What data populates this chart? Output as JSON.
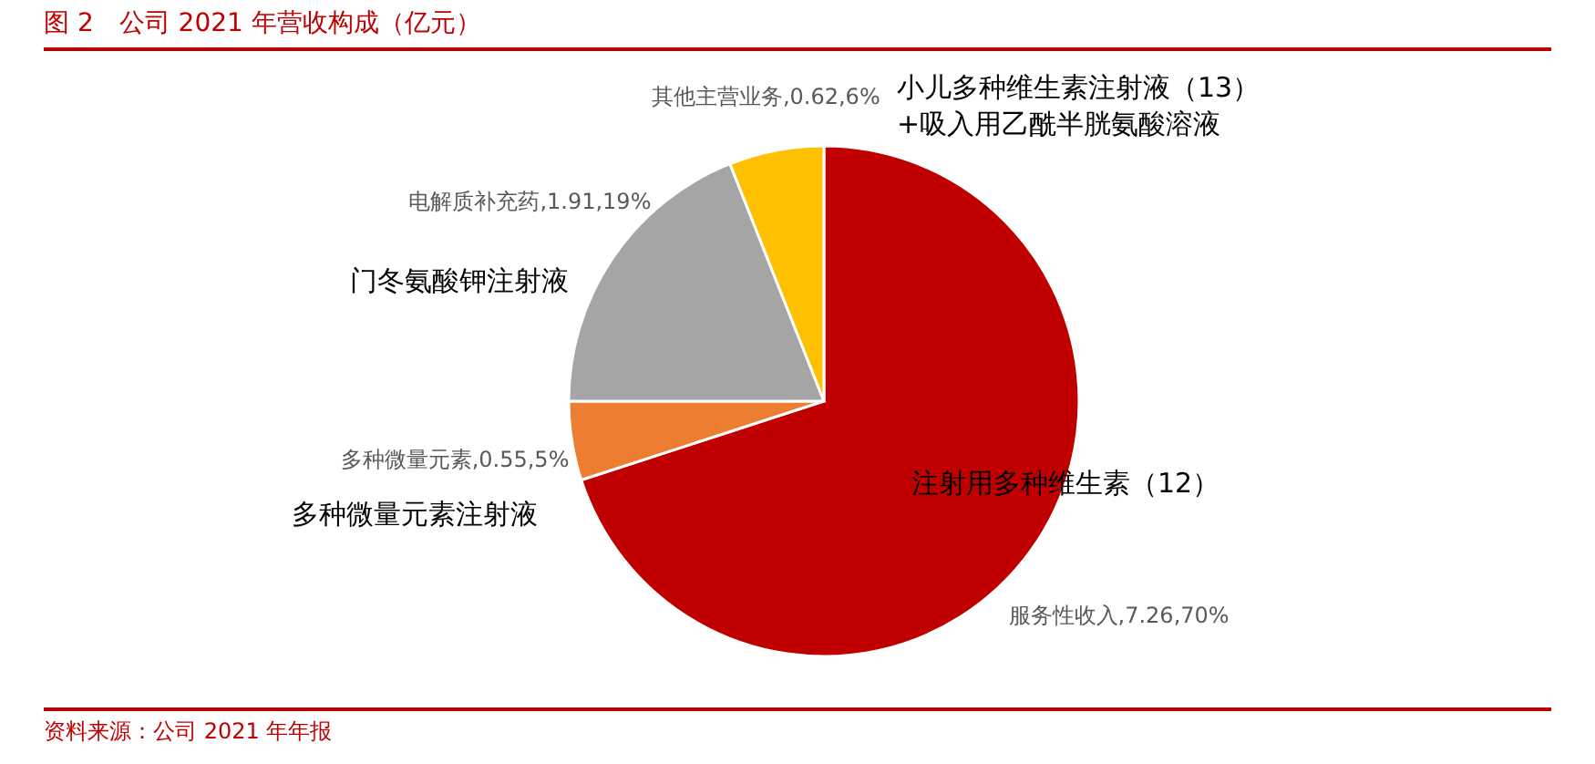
{
  "chart_data": {
    "type": "pie",
    "title": "图 2　公司 2021 年营收构成（亿元）",
    "categories": [
      "服务性收入",
      "多种微量元素",
      "电解质补充药",
      "其他主营业务"
    ],
    "values": [
      70,
      5,
      19,
      6
    ],
    "value_labels": [
      "7.26,70%",
      "0.55,5%",
      "1.91,19%",
      "0.62,6%"
    ],
    "colors": [
      "#c00000",
      "#ed7d31",
      "#a5a5a5",
      "#ffc000"
    ],
    "annotations": [
      "注射用多种维生素（12）",
      "多种微量元素注射液",
      "门冬氨酸钾注射液",
      "小儿多种维生素注射液（13）+吸入用乙酰半胱氨酸溶液",
      "资料来源：公司 2021 年年报"
    ]
  }
}
